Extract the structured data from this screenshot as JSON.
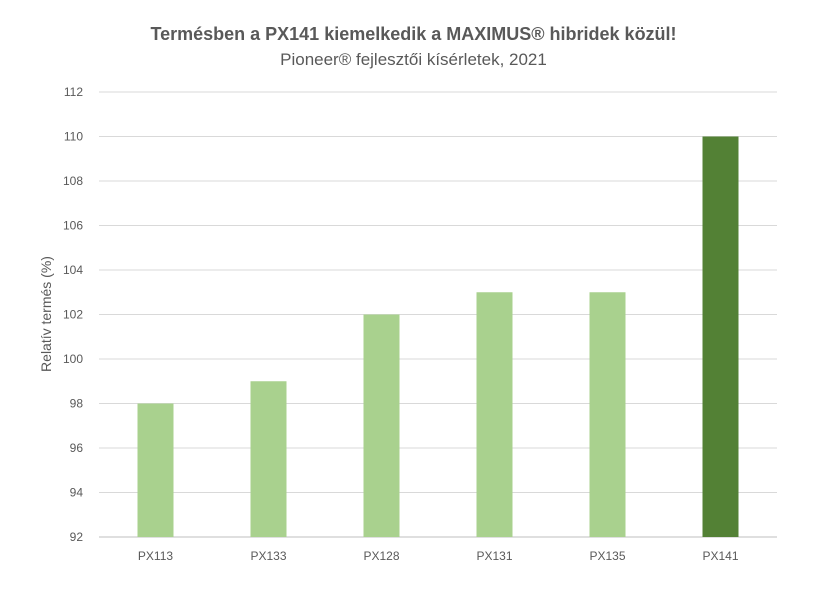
{
  "chart_data": {
    "type": "bar",
    "title": "Termésben a PX141 kiemelkedik a MAXIMUS® hibridek közül!",
    "subtitle": "Pioneer® fejlesztői kísérletek, 2021",
    "xlabel": "",
    "ylabel": "Relatív termés (%)",
    "categories": [
      "PX113",
      "PX133",
      "PX128",
      "PX131",
      "PX135",
      "PX141"
    ],
    "values": [
      98,
      99,
      102,
      103,
      103,
      110
    ],
    "ylim": [
      92,
      112
    ],
    "yticks": [
      92,
      94,
      96,
      98,
      100,
      102,
      104,
      106,
      108,
      110,
      112
    ],
    "grid": true,
    "legend": "none",
    "colors": {
      "bar": "#a9d18e",
      "highlight": "#538135",
      "grid": "#d9d9d9",
      "text": "#595959"
    },
    "highlight_category": "PX141"
  }
}
